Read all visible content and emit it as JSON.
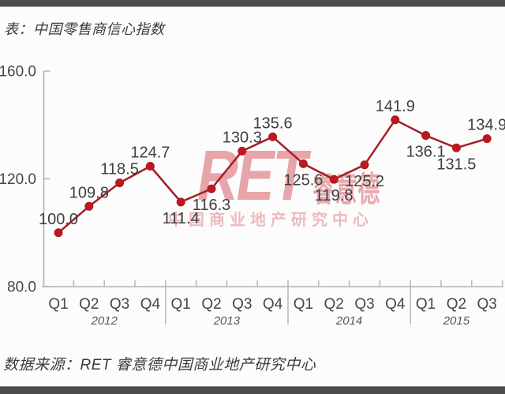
{
  "header": {
    "title": "表：中国零售商信心指数"
  },
  "footer": {
    "source": "数据来源：RET 睿意德中国商业地产研究中心"
  },
  "watermark": {
    "brand_latin": "RET",
    "brand_cjk": "睿意德",
    "subtitle": "中国商业地产研究中心"
  },
  "chart_data": {
    "type": "line",
    "title": "中国零售商信心指数",
    "series_name": "中国零售商信心指数",
    "x_years": [
      {
        "label": "2012",
        "quarters": [
          "Q1",
          "Q2",
          "Q3",
          "Q4"
        ]
      },
      {
        "label": "2013",
        "quarters": [
          "Q1",
          "Q2",
          "Q3",
          "Q4"
        ]
      },
      {
        "label": "2014",
        "quarters": [
          "Q1",
          "Q2",
          "Q3",
          "Q4"
        ]
      },
      {
        "label": "2015",
        "quarters": [
          "Q1",
          "Q2",
          "Q3"
        ]
      }
    ],
    "values": [
      100.0,
      109.8,
      118.5,
      124.7,
      111.4,
      116.3,
      130.3,
      135.6,
      125.6,
      119.8,
      125.2,
      141.9,
      136.1,
      131.5,
      134.9
    ],
    "value_label_position": [
      "above",
      "above",
      "above",
      "above",
      "below",
      "below",
      "above",
      "above",
      "below",
      "below",
      "below",
      "above",
      "below",
      "below",
      "above"
    ],
    "ylim": [
      80,
      160
    ],
    "yticks": [
      160.0,
      120.0,
      80.0
    ],
    "grid": false,
    "legend": false,
    "colors": {
      "line": "#a21e24",
      "marker": "#c2151d",
      "value_label": "#3f3f3f",
      "axis": "#b2b2b2",
      "tick_label": "#474747",
      "year_label": "#565656"
    }
  }
}
